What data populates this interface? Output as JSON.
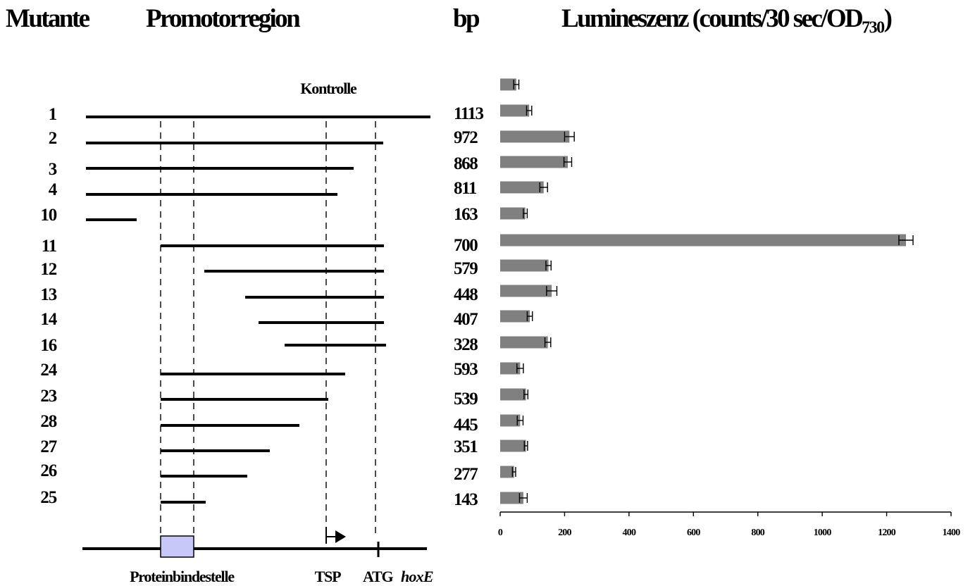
{
  "headers": {
    "mutant": "Mutante",
    "promoter": "Promotorregion",
    "bp": "bp",
    "lum_main": "Lumineszenz (counts/30 sec/OD",
    "lum_sub": "730",
    "lum_close": ")"
  },
  "control_label": "Kontrolle",
  "map_labels": {
    "binding_site": "Proteinbindestelle",
    "tsp": "TSP",
    "atg": "ATG",
    "gene": "hoxE"
  },
  "colors": {
    "bar": "#808080",
    "binding_box": "#c8c8f8",
    "ink": "#000000"
  },
  "chart_data": {
    "type": "bar",
    "orientation": "horizontal",
    "xlim": [
      0,
      1400
    ],
    "xticks": [
      0,
      200,
      400,
      600,
      800,
      1000,
      1200,
      1400
    ],
    "rows": [
      {
        "mutant": "",
        "bp": "",
        "value": 50,
        "error": 8
      },
      {
        "mutant": "1",
        "bp": "1113",
        "value": 90,
        "error": 8
      },
      {
        "mutant": "2",
        "bp": "972",
        "value": 215,
        "error": 15
      },
      {
        "mutant": "3",
        "bp": "868",
        "value": 210,
        "error": 12
      },
      {
        "mutant": "4",
        "bp": "811",
        "value": 135,
        "error": 12
      },
      {
        "mutant": "10",
        "bp": "163",
        "value": 78,
        "error": 6
      },
      {
        "mutant": "11",
        "bp": "700",
        "value": 1260,
        "error": 22
      },
      {
        "mutant": "12",
        "bp": "579",
        "value": 150,
        "error": 8
      },
      {
        "mutant": "13",
        "bp": "448",
        "value": 160,
        "error": 16
      },
      {
        "mutant": "14",
        "bp": "407",
        "value": 92,
        "error": 8
      },
      {
        "mutant": "16",
        "bp": "328",
        "value": 148,
        "error": 9
      },
      {
        "mutant": "24",
        "bp": "593",
        "value": 62,
        "error": 10
      },
      {
        "mutant": "23",
        "bp": "539",
        "value": 80,
        "error": 6
      },
      {
        "mutant": "28",
        "bp": "445",
        "value": 62,
        "error": 9
      },
      {
        "mutant": "27",
        "bp": "351",
        "value": 80,
        "error": 5
      },
      {
        "mutant": "26",
        "bp": "277",
        "value": 43,
        "error": 5
      },
      {
        "mutant": "25",
        "bp": "143",
        "value": 72,
        "error": 12
      }
    ]
  }
}
